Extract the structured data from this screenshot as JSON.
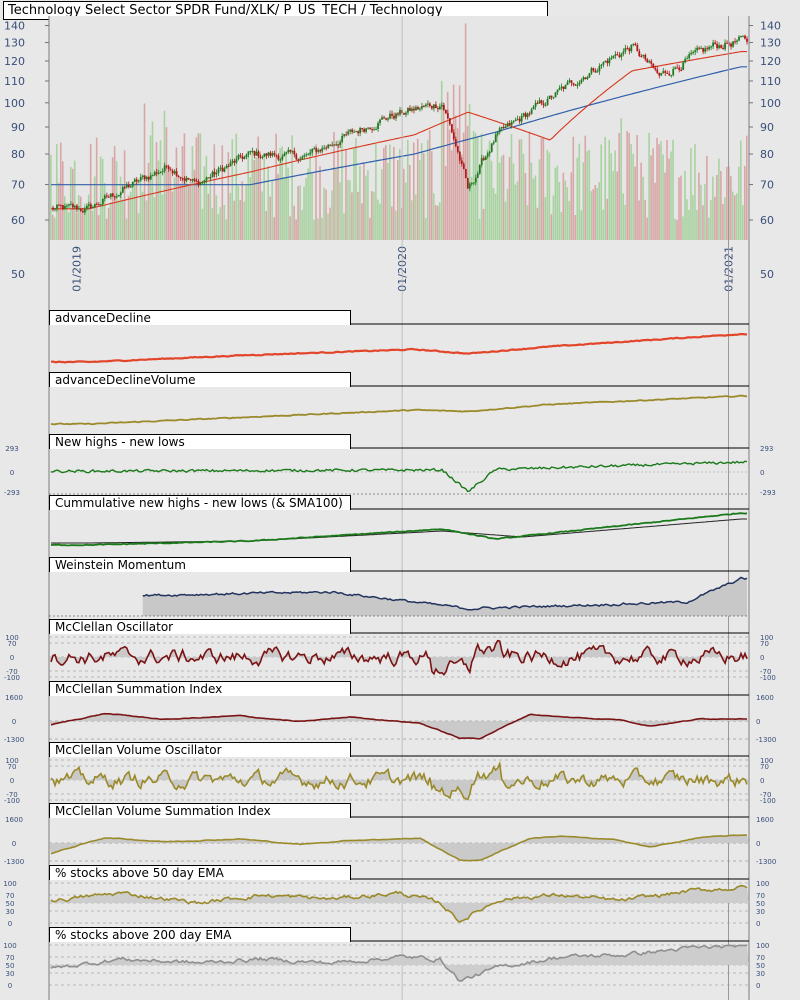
{
  "header": {
    "title": "Technology Select Sector SPDR Fund/XLK/ P_US_TECH / Technology"
  },
  "colors": {
    "background": "#e8e8e8",
    "up_candle": "#1f7a1f",
    "down_candle": "#b01818",
    "volume_up": "#a9d2a1",
    "volume_down": "#d8a6a6",
    "sma_fast": "#d9361c",
    "sma_slow": "#2f5faa",
    "sma_mid": "#8a7a1c",
    "advance_decline": "#e2452a",
    "olive": "#9a8a2a",
    "green_line": "#1a7a1a",
    "navy": "#22345e",
    "maroon": "#7a1414",
    "grey_line": "#8f8f8f",
    "axis_text": "#3a4f7a"
  },
  "chart_data": [
    {
      "type": "candlestick",
      "title": "Technology Select Sector SPDR Fund/XLK/ P_US_TECH / Technology",
      "x_tick_labels": [
        "01/2019",
        "01/2020",
        "01/2021"
      ],
      "y_scale": "log",
      "y_tick_labels": [
        "140",
        "130",
        "120",
        "110",
        "100",
        "90",
        "80",
        "70",
        "60",
        "50"
      ],
      "ylim": [
        50,
        140
      ],
      "series": [
        {
          "kind": "close",
          "x": [
            "2019-01",
            "2019-04",
            "2019-05",
            "2019-07",
            "2019-09",
            "2019-12",
            "2020-02",
            "2020-03",
            "2020-04",
            "2020-06",
            "2020-09",
            "2020-10",
            "2020-12",
            "2021-01"
          ],
          "values": [
            63,
            76,
            70,
            80,
            79,
            94,
            100,
            68,
            86,
            102,
            128,
            112,
            128,
            131
          ]
        },
        {
          "kind": "sma_fast",
          "x": [
            "2019-01",
            "2019-07",
            "2020-01",
            "2020-03",
            "2020-06",
            "2020-09",
            "2021-01"
          ],
          "values": [
            63,
            74,
            87,
            96,
            85,
            115,
            125
          ]
        },
        {
          "kind": "sma_slow",
          "x": [
            "2019-01",
            "2019-07",
            "2020-01",
            "2020-04",
            "2020-09",
            "2021-01"
          ],
          "values": [
            70,
            70,
            80,
            88,
            104,
            117
          ]
        },
        {
          "kind": "volume",
          "note": ""
        }
      ]
    },
    {
      "type": "line",
      "title": "advanceDecline",
      "series": [
        {
          "x": [
            "2019-01",
            "2019-07",
            "2020-01",
            "2020-03",
            "2020-06",
            "2021-01"
          ],
          "values": [
            0.0,
            0.25,
            0.45,
            0.3,
            0.55,
            1.0
          ]
        }
      ]
    },
    {
      "type": "line",
      "title": "advanceDeclineVolume",
      "series": [
        {
          "x": [
            "2019-01",
            "2019-07",
            "2020-01",
            "2020-03",
            "2020-06",
            "2021-01"
          ],
          "values": [
            0.0,
            0.25,
            0.5,
            0.45,
            0.7,
            1.0
          ]
        }
      ]
    },
    {
      "type": "line",
      "title": "New highs - new lows",
      "y_tick_labels": [
        "293",
        "0",
        "-293"
      ],
      "ylim": [
        -293,
        293
      ],
      "series": [
        {
          "x": [
            "2019-01",
            "2020-02",
            "2020-03",
            "2020-04",
            "2021-01"
          ],
          "values": [
            10,
            25,
            -240,
            30,
            120
          ]
        }
      ]
    },
    {
      "type": "line",
      "title": "Cummulative new highs - new lows (& SMA100)",
      "series": [
        {
          "x": [
            "2019-01",
            "2019-07",
            "2020-02",
            "2020-04",
            "2021-01"
          ],
          "values": [
            0.2,
            0.3,
            0.6,
            0.35,
            1.0
          ]
        },
        {
          "x": [
            "2019-01",
            "2019-07",
            "2020-02",
            "2020-05",
            "2021-01"
          ],
          "values": [
            0.25,
            0.3,
            0.55,
            0.4,
            0.85
          ]
        }
      ]
    },
    {
      "type": "area",
      "title": "Weinstein Momentum",
      "series": [
        {
          "x": [
            "2019-03",
            "2019-10",
            "2020-03",
            "2020-11",
            "2021-01"
          ],
          "values": [
            0.5,
            0.6,
            0.1,
            0.3,
            1.0
          ]
        }
      ]
    },
    {
      "type": "line",
      "title": "McClellan Oscillator",
      "y_tick_labels": [
        "100",
        "70",
        "0",
        "-70",
        "-100"
      ],
      "ylim": [
        -100,
        100
      ]
    },
    {
      "type": "area",
      "title": "McClellan Summation Index",
      "y_tick_labels": [
        "1600",
        "0",
        "-1300"
      ],
      "ylim": [
        -1300,
        1600
      ]
    },
    {
      "type": "line",
      "title": "McClellan Volume Oscillator",
      "y_tick_labels": [
        "100",
        "70",
        "0",
        "-70",
        "-100"
      ],
      "ylim": [
        -100,
        100
      ]
    },
    {
      "type": "area",
      "title": "McClellan Volume Summation Index",
      "y_tick_labels": [
        "1600",
        "0",
        "-1300"
      ],
      "ylim": [
        -1300,
        1600
      ]
    },
    {
      "type": "line",
      "title": "% stocks above 50 day EMA",
      "y_tick_labels": [
        "100",
        "70",
        "50",
        "30",
        "0"
      ],
      "ylim": [
        0,
        100
      ]
    },
    {
      "type": "line",
      "title": "% stocks above 200 day EMA",
      "y_tick_labels": [
        "100",
        "70",
        "50",
        "30",
        "0"
      ],
      "ylim": [
        0,
        100
      ]
    }
  ]
}
